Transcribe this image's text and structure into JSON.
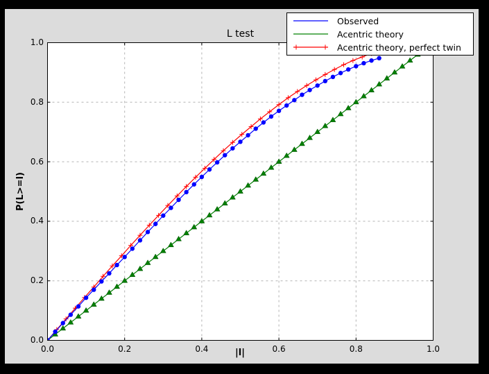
{
  "window": {
    "bg": "#000000"
  },
  "figure": {
    "bg": "#dcdcdc"
  },
  "axes": {
    "bg": "#ffffff",
    "border_color": "#000000",
    "grid_color": "#b3b3b3",
    "tick_color": "#000000",
    "text_color": "#000000"
  },
  "chart_data": {
    "type": "line",
    "title": "L test",
    "xlabel": "|l|",
    "ylabel": "P(L>=l)",
    "xlim": [
      0,
      1
    ],
    "ylim": [
      0,
      1
    ],
    "grid": "dashed",
    "legend_position": "upper right",
    "xticks": [
      0,
      0.2,
      0.4,
      0.6,
      0.8,
      1.0
    ],
    "xtick_labels": [
      "0.0",
      "0.2",
      "0.4",
      "0.6",
      "0.8",
      "1.0"
    ],
    "yticks": [
      0,
      0.2,
      0.4,
      0.6,
      0.8,
      1.0
    ],
    "ytick_labels": [
      "0.0",
      "0.2",
      "0.4",
      "0.6",
      "0.8",
      "1.0"
    ],
    "series": [
      {
        "name": "Observed",
        "color": "#0000ff",
        "marker": "circle",
        "points": [
          [
            0,
            0
          ],
          [
            0.02,
            0.029
          ],
          [
            0.04,
            0.058
          ],
          [
            0.06,
            0.086
          ],
          [
            0.08,
            0.114
          ],
          [
            0.1,
            0.143
          ],
          [
            0.12,
            0.17
          ],
          [
            0.14,
            0.198
          ],
          [
            0.16,
            0.225
          ],
          [
            0.18,
            0.253
          ],
          [
            0.2,
            0.28
          ],
          [
            0.22,
            0.308
          ],
          [
            0.24,
            0.336
          ],
          [
            0.26,
            0.364
          ],
          [
            0.28,
            0.391
          ],
          [
            0.3,
            0.419
          ],
          [
            0.32,
            0.445
          ],
          [
            0.34,
            0.472
          ],
          [
            0.36,
            0.498
          ],
          [
            0.38,
            0.524
          ],
          [
            0.4,
            0.549
          ],
          [
            0.42,
            0.574
          ],
          [
            0.44,
            0.598
          ],
          [
            0.46,
            0.622
          ],
          [
            0.48,
            0.645
          ],
          [
            0.5,
            0.667
          ],
          [
            0.52,
            0.689
          ],
          [
            0.54,
            0.711
          ],
          [
            0.56,
            0.732
          ],
          [
            0.58,
            0.752
          ],
          [
            0.6,
            0.771
          ],
          [
            0.62,
            0.789
          ],
          [
            0.64,
            0.807
          ],
          [
            0.66,
            0.825
          ],
          [
            0.68,
            0.841
          ],
          [
            0.7,
            0.856
          ],
          [
            0.72,
            0.871
          ],
          [
            0.74,
            0.885
          ],
          [
            0.76,
            0.898
          ],
          [
            0.78,
            0.91
          ],
          [
            0.8,
            0.921
          ],
          [
            0.82,
            0.931
          ],
          [
            0.84,
            0.94
          ],
          [
            0.86,
            0.948
          ]
        ]
      },
      {
        "name": "Acentric theory",
        "color": "#008000",
        "marker": "triangle-up",
        "points": [
          [
            0,
            0
          ],
          [
            0.02,
            0.02
          ],
          [
            0.04,
            0.04
          ],
          [
            0.06,
            0.06
          ],
          [
            0.08,
            0.08
          ],
          [
            0.1,
            0.1
          ],
          [
            0.12,
            0.12
          ],
          [
            0.14,
            0.14
          ],
          [
            0.16,
            0.16
          ],
          [
            0.18,
            0.18
          ],
          [
            0.2,
            0.2
          ],
          [
            0.22,
            0.22
          ],
          [
            0.24,
            0.24
          ],
          [
            0.26,
            0.26
          ],
          [
            0.28,
            0.28
          ],
          [
            0.3,
            0.3
          ],
          [
            0.32,
            0.32
          ],
          [
            0.34,
            0.34
          ],
          [
            0.36,
            0.36
          ],
          [
            0.38,
            0.38
          ],
          [
            0.4,
            0.4
          ],
          [
            0.42,
            0.42
          ],
          [
            0.44,
            0.44
          ],
          [
            0.46,
            0.46
          ],
          [
            0.48,
            0.48
          ],
          [
            0.5,
            0.5
          ],
          [
            0.52,
            0.52
          ],
          [
            0.54,
            0.54
          ],
          [
            0.56,
            0.56
          ],
          [
            0.58,
            0.58
          ],
          [
            0.6,
            0.6
          ],
          [
            0.62,
            0.62
          ],
          [
            0.64,
            0.64
          ],
          [
            0.66,
            0.66
          ],
          [
            0.68,
            0.68
          ],
          [
            0.7,
            0.7
          ],
          [
            0.72,
            0.72
          ],
          [
            0.74,
            0.74
          ],
          [
            0.76,
            0.76
          ],
          [
            0.78,
            0.78
          ],
          [
            0.8,
            0.8
          ],
          [
            0.82,
            0.82
          ],
          [
            0.84,
            0.84
          ],
          [
            0.86,
            0.86
          ],
          [
            0.88,
            0.88
          ],
          [
            0.9,
            0.9
          ],
          [
            0.92,
            0.92
          ],
          [
            0.94,
            0.94
          ],
          [
            0.96,
            0.96
          ]
        ]
      },
      {
        "name": "Acentric theory, perfect twin",
        "color": "#ff0000",
        "marker": "plus",
        "points": [
          [
            0,
            0
          ],
          [
            0.024,
            0.036
          ],
          [
            0.048,
            0.072
          ],
          [
            0.072,
            0.108
          ],
          [
            0.096,
            0.144
          ],
          [
            0.12,
            0.179
          ],
          [
            0.144,
            0.215
          ],
          [
            0.168,
            0.25
          ],
          [
            0.192,
            0.284
          ],
          [
            0.216,
            0.319
          ],
          [
            0.24,
            0.353
          ],
          [
            0.264,
            0.387
          ],
          [
            0.288,
            0.42
          ],
          [
            0.312,
            0.453
          ],
          [
            0.336,
            0.485
          ],
          [
            0.36,
            0.517
          ],
          [
            0.384,
            0.548
          ],
          [
            0.408,
            0.578
          ],
          [
            0.432,
            0.608
          ],
          [
            0.456,
            0.637
          ],
          [
            0.48,
            0.665
          ],
          [
            0.504,
            0.692
          ],
          [
            0.528,
            0.718
          ],
          [
            0.552,
            0.744
          ],
          [
            0.576,
            0.768
          ],
          [
            0.6,
            0.792
          ],
          [
            0.624,
            0.815
          ],
          [
            0.648,
            0.836
          ],
          [
            0.672,
            0.856
          ],
          [
            0.696,
            0.875
          ],
          [
            0.72,
            0.893
          ],
          [
            0.744,
            0.91
          ],
          [
            0.768,
            0.926
          ],
          [
            0.792,
            0.94
          ],
          [
            0.816,
            0.952
          ],
          [
            0.84,
            0.964
          ]
        ]
      }
    ]
  }
}
